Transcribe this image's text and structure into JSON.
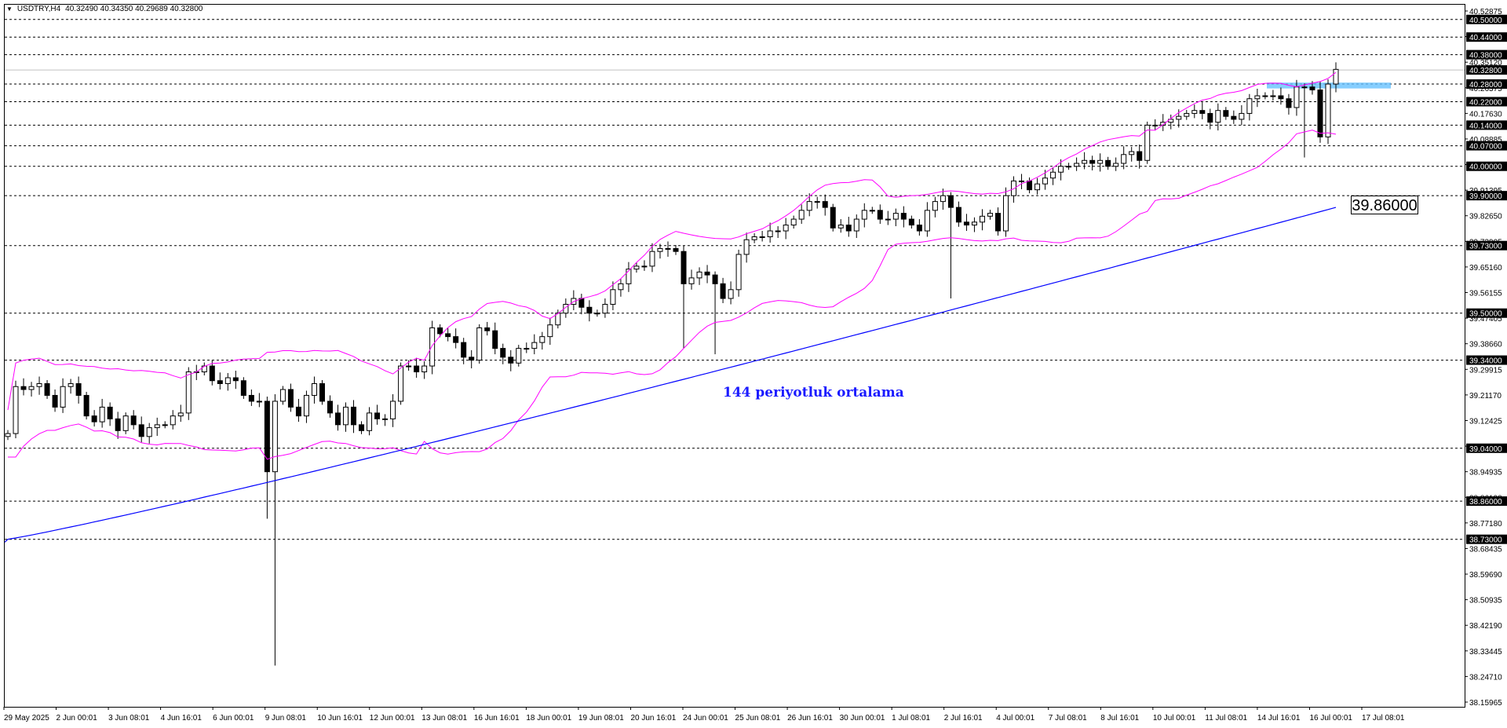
{
  "header": {
    "symbol": "USDTRY,H4",
    "ohlc": "40.32490 40.34350 40.29689 40.32800"
  },
  "annotation": "144 periyotluk ortalama",
  "ma_value_label": "39.86000",
  "colors": {
    "candle": "#000000",
    "bollinger": "#ff00ff",
    "moving_average": "#0000ff",
    "annotation": "#1a1aff",
    "highlight_zone": "#66c2ff",
    "grid_line": "#000000",
    "price_box_bg": "#000000"
  },
  "price_axis": {
    "labels": [
      "40.52875",
      "40.43520",
      "40.35120",
      "40.26375",
      "40.17630",
      "40.08885",
      "40.00140",
      "39.91395",
      "39.82650",
      "39.73905",
      "39.65160",
      "39.56155",
      "39.47405",
      "39.38660",
      "39.29915",
      "39.21170",
      "39.12425",
      "39.03680",
      "38.94935",
      "38.86190",
      "38.77180",
      "38.68435",
      "38.59690",
      "38.50935",
      "38.42190",
      "38.33445",
      "38.24710",
      "38.15965"
    ],
    "boxed_levels": [
      "40.50000",
      "40.44000",
      "40.38000",
      "40.32800",
      "40.28000",
      "40.22000",
      "40.14000",
      "40.07000",
      "40.00000",
      "39.90000",
      "39.73000",
      "39.50000",
      "39.34000",
      "39.04000",
      "38.86000",
      "38.73000"
    ]
  },
  "time_axis": {
    "labels": [
      "29 May 2025",
      "2 Jun 00:01",
      "3 Jun 08:01",
      "4 Jun 16:01",
      "6 Jun 00:01",
      "9 Jun 08:01",
      "10 Jun 16:01",
      "12 Jun 00:01",
      "13 Jun 08:01",
      "16 Jun 16:01",
      "18 Jun 00:01",
      "19 Jun 08:01",
      "20 Jun 16:01",
      "24 Jun 00:01",
      "25 Jun 08:01",
      "26 Jun 16:01",
      "30 Jun 00:01",
      "1 Jul 08:01",
      "2 Jul 16:01",
      "4 Jul 00:01",
      "7 Jul 08:01",
      "8 Jul 16:01",
      "10 Jul 00:01",
      "11 Jul 08:01",
      "14 Jul 16:01",
      "16 Jul 00:01",
      "17 Jul 08:01"
    ]
  },
  "chart_data": {
    "type": "candlestick",
    "symbol": "USDTRY",
    "timeframe": "H4",
    "y_range": [
      38.15965,
      40.52875
    ],
    "horizontal_levels": [
      40.5,
      40.44,
      40.38,
      40.328,
      40.28,
      40.22,
      40.14,
      40.07,
      40.0,
      39.9,
      39.73,
      39.5,
      39.34,
      39.04,
      38.86,
      38.73
    ],
    "resistance_zone": [
      40.265,
      40.285
    ],
    "moving_average_period": 144,
    "moving_average_last": 39.86,
    "last_price": 40.328,
    "candles_close": [
      39.09,
      39.25,
      39.24,
      39.25,
      39.26,
      39.22,
      39.18,
      39.25,
      39.26,
      39.22,
      39.15,
      39.13,
      39.18,
      39.14,
      39.1,
      39.15,
      39.12,
      39.08,
      39.11,
      39.12,
      39.12,
      39.15,
      39.16,
      39.3,
      39.3,
      39.32,
      39.27,
      39.26,
      39.28,
      39.27,
      39.22,
      39.2,
      39.2,
      38.96,
      39.2,
      39.24,
      39.18,
      39.15,
      39.22,
      39.26,
      39.2,
      39.16,
      39.12,
      39.18,
      39.12,
      39.1,
      39.16,
      39.14,
      39.14,
      39.2,
      39.32,
      39.32,
      39.3,
      39.32,
      39.45,
      39.43,
      39.42,
      39.4,
      39.35,
      39.34,
      39.45,
      39.44,
      39.38,
      39.35,
      39.33,
      39.38,
      39.38,
      39.4,
      39.42,
      39.46,
      39.5,
      39.53,
      39.55,
      39.52,
      39.5,
      39.5,
      39.53,
      39.58,
      39.6,
      39.65,
      39.66,
      39.66,
      39.71,
      39.72,
      39.72,
      39.71,
      39.6,
      39.62,
      39.64,
      39.63,
      39.6,
      39.55,
      39.58,
      39.7,
      39.75,
      39.76,
      39.76,
      39.78,
      39.78,
      39.8,
      39.82,
      39.85,
      39.88,
      39.88,
      39.86,
      39.79,
      39.8,
      39.78,
      39.82,
      39.85,
      39.85,
      39.82,
      39.82,
      39.84,
      39.82,
      39.8,
      39.78,
      39.85,
      39.88,
      39.9,
      39.86,
      39.81,
      39.8,
      39.81,
      39.83,
      39.84,
      39.78,
      39.9,
      39.95,
      39.95,
      39.92,
      39.94,
      39.96,
      39.98,
      40.0,
      40.0,
      40.01,
      40.02,
      40.01,
      40.02,
      40.0,
      40.01,
      40.04,
      40.05,
      40.02,
      40.14,
      40.14,
      40.15,
      40.16,
      40.17,
      40.18,
      40.19,
      40.18,
      40.15,
      40.19,
      40.17,
      40.16,
      40.18,
      40.23,
      40.24,
      40.24,
      40.24,
      40.23,
      40.2,
      40.27,
      40.27,
      40.26,
      40.1,
      40.28,
      40.33
    ]
  }
}
